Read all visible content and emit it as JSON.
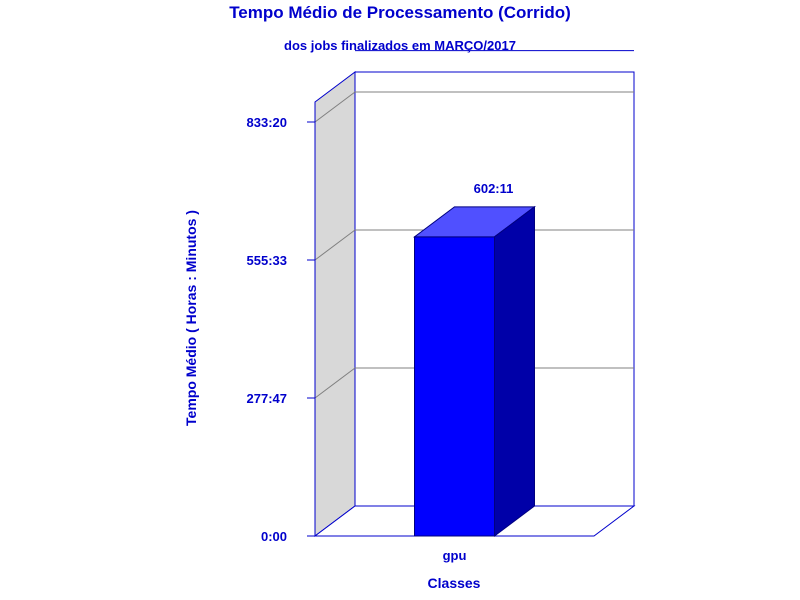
{
  "chart_data": {
    "type": "bar",
    "title": "Tempo Médio de Processamento (Corrido)",
    "subtitle": "dos jobs finalizados em MARÇO/2017",
    "xlabel": "Classes",
    "ylabel": "Tempo Médio ( Horas : Minutos )",
    "categories": [
      "gpu"
    ],
    "values": [
      602.18
    ],
    "value_labels": [
      "602:11"
    ],
    "y_ticks": [
      {
        "value": 0,
        "label": "0:00"
      },
      {
        "value": 277.78,
        "label": "277:47"
      },
      {
        "value": 555.55,
        "label": "555:33"
      },
      {
        "value": 833.33,
        "label": "833:20"
      }
    ],
    "ylim": [
      0,
      916.67
    ],
    "grid": true,
    "three_d": true,
    "colors": {
      "text": "#0000cc",
      "bar_front": "#0000ff",
      "bar_top": "#5050ff",
      "bar_side": "#0000a8",
      "wall_side": "#d8d8d8",
      "frame": "#0000cc",
      "grid": "#808080"
    }
  }
}
